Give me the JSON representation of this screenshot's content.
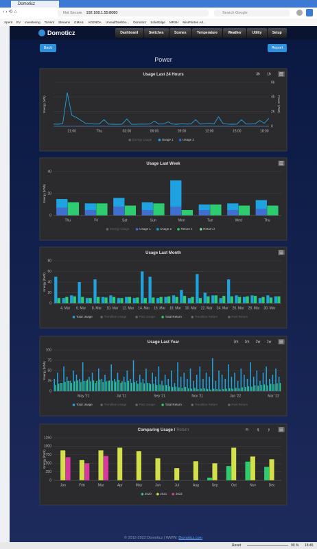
{
  "browser": {
    "tab": "Domoticz",
    "security": "Not Secure",
    "address": "192.168.1.55:8080",
    "search": "Search Google",
    "bookmarks": [
      "Xperit",
      "EV",
      "Investering",
      "Torrent",
      "Streams",
      "GMAIL",
      "AGENDA",
      "Unraid/Dashbo...",
      "Domoticz",
      "SolarEdge",
      "MRSH",
      "MiniPrinten Ad..."
    ]
  },
  "nav": {
    "brand": "Domoticz",
    "menu": [
      "Dashboard",
      "Switches",
      "Scenes",
      "Temperature",
      "Weather",
      "Utility",
      "Setup"
    ]
  },
  "page": {
    "back": "Back",
    "report": "Report",
    "title": "Power"
  },
  "chart_data": [
    {
      "type": "line",
      "title": "Usage Last 24 Hours",
      "range_buttons": [
        "3h",
        "1h"
      ],
      "y_label": "Energy (Wh)",
      "y2_label": "Power (Watt)",
      "categories": [
        null,
        null,
        null,
        null,
        "21:00",
        null,
        null,
        null,
        null,
        null,
        "Thu",
        null,
        null,
        null,
        null,
        null,
        "03:00",
        null,
        null,
        null,
        null,
        null,
        "06:00",
        null,
        null,
        null,
        null,
        null,
        "09:00",
        null,
        null,
        null,
        null,
        null,
        "12:00",
        null,
        null,
        null,
        null,
        null,
        "15:00",
        null,
        null,
        null,
        null,
        null,
        "18:00",
        null
      ],
      "y2lim": [
        0,
        6000
      ],
      "y2ticks": [
        0,
        {
          "value": 2000,
          "label": "2k"
        },
        {
          "value": 4000,
          "label": "4k"
        },
        {
          "value": 6000,
          "label": "6k"
        }
      ],
      "series": [
        {
          "name": "Energy Usage",
          "hidden": true
        },
        {
          "name": "Usage 1",
          "color": "#1fa3e0",
          "axis": "y2",
          "values": [
            300,
            280,
            350,
            4600,
            1500,
            1200,
            800,
            400,
            350,
            300,
            320,
            900,
            300,
            280,
            260,
            300,
            1000,
            280,
            270,
            300,
            290,
            310,
            700,
            300,
            320,
            600,
            300,
            280,
            350,
            300,
            320,
            900,
            300,
            350,
            400,
            300,
            1300,
            350,
            300,
            280,
            300,
            900,
            320,
            300,
            350,
            800,
            400,
            1100
          ]
        },
        {
          "name": "Usage 2",
          "color": "#2a6fd6",
          "axis": "y2",
          "values": [
            0,
            0,
            0,
            0,
            0,
            0,
            0,
            0,
            0,
            0,
            0,
            0,
            0,
            0,
            0,
            0,
            0,
            0,
            0,
            0,
            0,
            0,
            0,
            0,
            0,
            0,
            0,
            0,
            0,
            0,
            0,
            0,
            0,
            0,
            0,
            0,
            0,
            0,
            0,
            0,
            0,
            0,
            0,
            0,
            0,
            0,
            0,
            0
          ]
        }
      ]
    },
    {
      "type": "bar",
      "title": "Usage Last Week",
      "y_label": "Energy (kWh)",
      "categories": [
        "Thu",
        "Fri",
        "Sat",
        "Sun",
        "Mon",
        "Tue",
        "Wed",
        "Thu"
      ],
      "ylim": [
        0,
        40
      ],
      "yticks": [
        0,
        20,
        40
      ],
      "series": [
        {
          "name": "Energy Usage",
          "hidden": true
        },
        {
          "name": "Usage 1",
          "color": "#3f6fd0",
          "stack": "usage",
          "values": [
            7,
            5,
            8,
            5,
            8,
            5,
            5,
            6
          ]
        },
        {
          "name": "Usage 2",
          "color": "#1fa3e0",
          "stack": "usage",
          "values": [
            8,
            6,
            8,
            7,
            24,
            5,
            6,
            8
          ]
        },
        {
          "name": "Return 1",
          "color": "#2ecc71",
          "stack": "return",
          "values": [
            12,
            11,
            9,
            11,
            5,
            10,
            9,
            9
          ]
        },
        {
          "name": "Return 2",
          "color": "#7be0a8",
          "stack": "return",
          "values": [
            0,
            0,
            0,
            0,
            0,
            0,
            0,
            0
          ]
        }
      ]
    },
    {
      "type": "bar",
      "title": "Usage Last Month",
      "y_label": "Energy (kWh)",
      "categories": [
        null,
        "4. Mar",
        null,
        "6. Mar",
        null,
        "8. Mar",
        null,
        "10. Mar",
        null,
        "12. Mar",
        null,
        "14. Mar",
        null,
        "16. Mar",
        null,
        "18. Mar",
        null,
        "20. Mar",
        null,
        "22. Mar",
        null,
        "24. Mar",
        null,
        "26. Mar",
        null,
        "28. Mar",
        null,
        "30. Mar",
        null
      ],
      "ylim": [
        0,
        80
      ],
      "yticks": [
        0,
        20,
        40,
        60,
        80
      ],
      "series": [
        {
          "name": "Total Usage",
          "color": "#1fa3e0",
          "values": [
            50,
            10,
            15,
            40,
            10,
            45,
            12,
            15,
            10,
            12,
            10,
            60,
            50,
            10,
            12,
            15,
            25,
            10,
            55,
            20,
            15,
            10,
            45,
            15,
            12,
            15,
            10,
            15,
            13
          ]
        },
        {
          "name": "Trendline Usage",
          "hidden": true
        },
        {
          "name": "Past Usage",
          "hidden": true
        },
        {
          "name": "Total Return",
          "color": "#2ecc71",
          "values": [
            10,
            12,
            13,
            12,
            10,
            12,
            11,
            12,
            10,
            12,
            11,
            10,
            11,
            12,
            13,
            12,
            14,
            12,
            10,
            13,
            15,
            14,
            13,
            12,
            13,
            14,
            12,
            11,
            13
          ]
        },
        {
          "name": "Trendline Return",
          "hidden": true
        },
        {
          "name": "Past Return",
          "hidden": true
        }
      ]
    },
    {
      "type": "bar",
      "title": "Usage Last Year",
      "range_buttons": [
        "3m",
        "1m",
        "2w",
        "1w"
      ],
      "y_label": "Energy (kWh)",
      "categories": [
        null,
        null,
        null,
        null,
        null,
        null,
        null,
        null,
        null,
        "May '21",
        null,
        null,
        null,
        null,
        null,
        null,
        null,
        null,
        null,
        null,
        null,
        "Jul '21",
        null,
        null,
        null,
        null,
        null,
        null,
        null,
        null,
        null,
        null,
        null,
        "Sep '21",
        null,
        null,
        null,
        null,
        null,
        null,
        null,
        null,
        null,
        null,
        null,
        "Nov '21",
        null,
        null,
        null,
        null,
        null,
        null,
        null,
        null,
        null,
        null,
        null,
        "Jan '22",
        null,
        null,
        null,
        null,
        null,
        null,
        null,
        null,
        null,
        null,
        null,
        "Mar '22",
        null,
        null
      ],
      "ylim": [
        0,
        100
      ],
      "yticks": [
        0,
        25,
        50,
        75,
        100
      ],
      "series": [
        {
          "name": "Total Usage",
          "color": "#1fa3e0",
          "values": [
            30,
            45,
            20,
            60,
            35,
            25,
            50,
            40,
            30,
            70,
            25,
            35,
            45,
            20,
            55,
            30,
            40,
            25,
            65,
            30,
            45,
            20,
            35,
            50,
            30,
            75,
            25,
            40,
            30,
            55,
            20,
            45,
            35,
            60,
            25,
            40,
            30,
            50,
            20,
            70,
            35,
            45,
            30,
            55,
            25,
            40,
            60,
            30,
            45,
            35,
            80,
            25,
            50,
            40,
            30,
            65,
            35,
            45,
            25,
            55,
            40,
            30,
            70,
            35,
            50,
            25,
            45,
            60,
            30,
            40,
            55,
            35
          ]
        },
        {
          "name": "Trendline Usage",
          "hidden": true
        },
        {
          "name": "Past Usage",
          "hidden": true
        },
        {
          "name": "Total Return",
          "color": "#2ecc71",
          "values": [
            15,
            18,
            20,
            22,
            25,
            20,
            24,
            26,
            22,
            25,
            28,
            24,
            26,
            25,
            28,
            22,
            24,
            26,
            25,
            23,
            27,
            24,
            22,
            25,
            20,
            22,
            18,
            21,
            19,
            20,
            17,
            18,
            15,
            16,
            14,
            15,
            12,
            10,
            11,
            9,
            8,
            10,
            7,
            6,
            8,
            5,
            6,
            7,
            5,
            4,
            6,
            5,
            4,
            5,
            6,
            7,
            6,
            8,
            7,
            9,
            10,
            12,
            11,
            14,
            13,
            15,
            16,
            14,
            18,
            17,
            19,
            20
          ]
        },
        {
          "name": "Trendline Return",
          "hidden": true
        },
        {
          "name": "Past Return",
          "hidden": true
        }
      ]
    },
    {
      "type": "bar",
      "title": "Comparing Usage /",
      "title_muted": "Return",
      "range_buttons": [
        "m",
        "q",
        "y"
      ],
      "y_label": "Energy (kWh)",
      "categories": [
        "Jan",
        "Feb",
        "Mar",
        "Apr",
        "May",
        "Jun",
        "Jul",
        "Aug",
        "Sep",
        "Oct",
        "Nov",
        "Dec"
      ],
      "ylim": [
        0,
        1250
      ],
      "yticks": [
        0,
        250,
        500,
        750,
        1000,
        1250
      ],
      "series": [
        {
          "name": "2020",
          "color": "#2ecc71",
          "values": [
            null,
            null,
            null,
            null,
            null,
            null,
            null,
            null,
            80,
            420,
            550,
            400
          ]
        },
        {
          "name": "2021",
          "color": "#d4e04a",
          "values": [
            880,
            600,
            880,
            960,
            860,
            650,
            360,
            560,
            500,
            960,
            700,
            620
          ]
        },
        {
          "name": "2022",
          "color": "#d63aa0",
          "values": [
            680,
            500,
            720,
            null,
            null,
            null,
            null,
            null,
            null,
            null,
            null,
            null
          ]
        }
      ]
    }
  ],
  "footer": {
    "text": "© 2012-2022 Domoticz | WWW: ",
    "link": "Domoticz.com"
  },
  "taskbar": {
    "reset": "Reset",
    "zoom": "90 %",
    "time": "18:45"
  }
}
